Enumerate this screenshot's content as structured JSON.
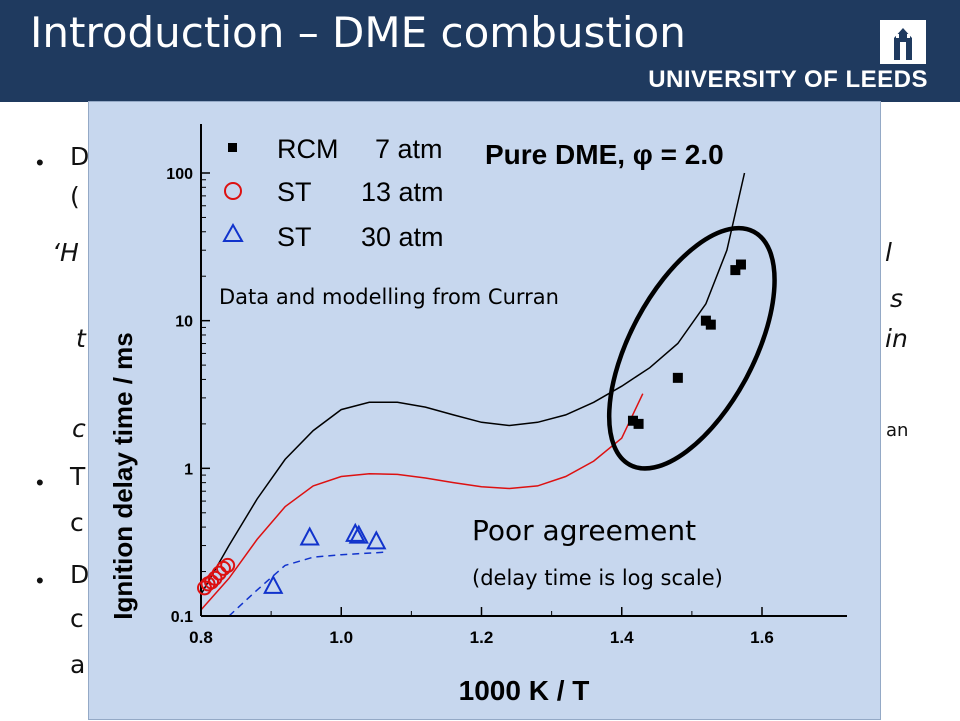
{
  "header": {
    "title": "Introduction – DME combustion",
    "university": "UNIVERSITY OF LEEDS"
  },
  "background_fragments": {
    "line1": "D",
    "line2": "(",
    "line3": "‘H",
    "line3_right": "l",
    "line4_right": "s",
    "line5": "t",
    "line5_right": "in",
    "line6": "c",
    "line6_right": "an",
    "line7": "T",
    "line8": "c",
    "line9": "D",
    "line10": "c",
    "line11": "a"
  },
  "annotations": {
    "source": "Data and modelling from Curran",
    "result": "Poor agreement",
    "result_note": "(delay time is log scale)"
  },
  "colors": {
    "header_bg": "#1f3a5f",
    "overlay_bg": "#c7d7ee",
    "rcm": "#000000",
    "st13": "#dd1111",
    "st30": "#1133cc",
    "ellipse": "#000000"
  },
  "chart_data": {
    "type": "scatter",
    "y_scale": "log",
    "xlim": [
      0.8,
      1.7
    ],
    "ylim": [
      0.1,
      150
    ],
    "xlabel": "1000 K / T",
    "ylabel": "Ignition delay time / ms",
    "x_ticks": [
      0.8,
      1.0,
      1.2,
      1.4,
      1.6
    ],
    "y_ticks": [
      0.1,
      1,
      10,
      100
    ],
    "x_tick_labels": [
      "0.8",
      "1.0",
      "1.2",
      "1.4",
      "1.6"
    ],
    "y_tick_labels": [
      "0.1",
      "1",
      "10",
      "100"
    ],
    "condition_label": "Pure DME, φ = 2.0",
    "legend_position": "top-left",
    "series": [
      {
        "name": "RCM",
        "pressure": "7 atm",
        "marker": "square",
        "color": "#000000",
        "points": [
          [
            1.416,
            2.1
          ],
          [
            1.424,
            2.0
          ],
          [
            1.48,
            4.1
          ],
          [
            1.52,
            10.0
          ],
          [
            1.527,
            9.4
          ],
          [
            1.562,
            22.0
          ],
          [
            1.57,
            24.0
          ]
        ]
      },
      {
        "name": "ST",
        "pressure": "13 atm",
        "marker": "circle",
        "color": "#dd1111",
        "points": [
          [
            0.805,
            0.155
          ],
          [
            0.81,
            0.165
          ],
          [
            0.815,
            0.17
          ],
          [
            0.82,
            0.18
          ],
          [
            0.826,
            0.195
          ],
          [
            0.832,
            0.21
          ],
          [
            0.838,
            0.22
          ]
        ]
      },
      {
        "name": "ST",
        "pressure": "30 atm",
        "marker": "triangle",
        "color": "#1133cc",
        "points": [
          [
            0.903,
            0.16
          ],
          [
            0.955,
            0.34
          ],
          [
            1.02,
            0.36
          ],
          [
            1.025,
            0.35
          ],
          [
            1.05,
            0.32
          ]
        ]
      }
    ],
    "model_curves": [
      {
        "color": "#000000",
        "style": "solid",
        "points": [
          [
            0.8,
            0.14
          ],
          [
            0.84,
            0.3
          ],
          [
            0.88,
            0.62
          ],
          [
            0.92,
            1.15
          ],
          [
            0.96,
            1.8
          ],
          [
            1.0,
            2.5
          ],
          [
            1.04,
            2.8
          ],
          [
            1.08,
            2.8
          ],
          [
            1.12,
            2.6
          ],
          [
            1.16,
            2.3
          ],
          [
            1.2,
            2.05
          ],
          [
            1.24,
            1.95
          ],
          [
            1.28,
            2.05
          ],
          [
            1.32,
            2.3
          ],
          [
            1.36,
            2.8
          ],
          [
            1.4,
            3.6
          ],
          [
            1.44,
            4.8
          ],
          [
            1.48,
            7.0
          ],
          [
            1.52,
            13.0
          ],
          [
            1.55,
            30.0
          ],
          [
            1.575,
            100.0
          ]
        ]
      },
      {
        "color": "#dd1111",
        "style": "solid",
        "points": [
          [
            0.8,
            0.11
          ],
          [
            0.84,
            0.18
          ],
          [
            0.88,
            0.33
          ],
          [
            0.92,
            0.55
          ],
          [
            0.96,
            0.76
          ],
          [
            1.0,
            0.88
          ],
          [
            1.04,
            0.92
          ],
          [
            1.08,
            0.91
          ],
          [
            1.12,
            0.86
          ],
          [
            1.16,
            0.8
          ],
          [
            1.2,
            0.75
          ],
          [
            1.24,
            0.73
          ],
          [
            1.28,
            0.76
          ],
          [
            1.32,
            0.88
          ],
          [
            1.36,
            1.12
          ],
          [
            1.4,
            1.6
          ],
          [
            1.43,
            3.2
          ]
        ]
      },
      {
        "color": "#1133cc",
        "style": "dashed",
        "points": [
          [
            0.84,
            0.1
          ],
          [
            0.88,
            0.15
          ],
          [
            0.92,
            0.22
          ],
          [
            0.96,
            0.25
          ],
          [
            1.0,
            0.26
          ],
          [
            1.06,
            0.27
          ]
        ]
      }
    ],
    "highlight_ellipse": {
      "cx": 1.5,
      "cy": 6.5
    }
  }
}
